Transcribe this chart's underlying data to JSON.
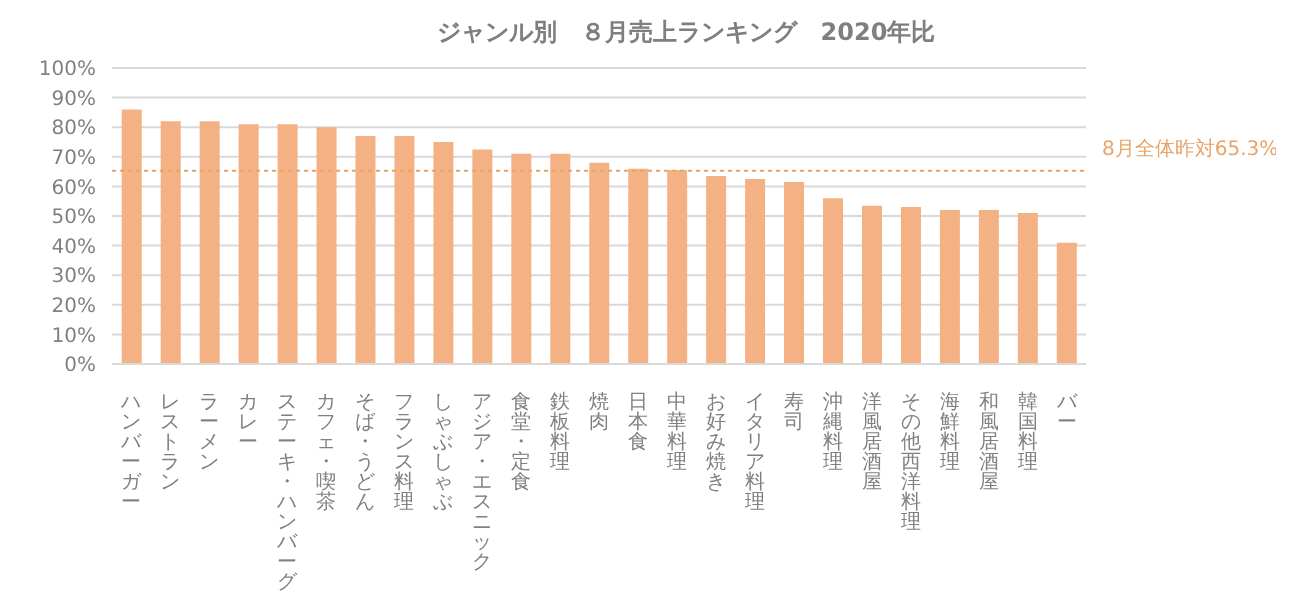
{
  "chart_data": {
    "type": "bar",
    "title": "ジャンル別　８月売上ランキング　2020年比",
    "categories": [
      "ハンバーガー",
      "レストラン",
      "ラーメン",
      "カレー",
      "ステーキ・ハンバーグ",
      "カフェ・喫茶",
      "そば・うどん",
      "フランス料理",
      "しゃぶしゃぶ",
      "アジア・エスニック",
      "食堂・定食",
      "鉄板料理",
      "焼肉",
      "日本食",
      "中華料理",
      "お好み焼き",
      "イタリア料理",
      "寿司",
      "沖縄料理",
      "洋風居酒屋",
      "その他西洋料理",
      "海鮮料理",
      "和風居酒屋",
      "韓国料理",
      "バー"
    ],
    "values": [
      86,
      82,
      82,
      81,
      81,
      80,
      77,
      77,
      75,
      72.5,
      71,
      71,
      68,
      66,
      65.5,
      63.5,
      62.5,
      61.5,
      56,
      53.5,
      53,
      52,
      52,
      51,
      41
    ],
    "color": "#f4b183",
    "ylim": [
      0,
      100
    ],
    "yticks": [
      {
        "value": 0,
        "label": "0%"
      },
      {
        "value": 10,
        "label": "10%"
      },
      {
        "value": 20,
        "label": "20%"
      },
      {
        "value": 30,
        "label": "30%"
      },
      {
        "value": 40,
        "label": "40%"
      },
      {
        "value": 50,
        "label": "50%"
      },
      {
        "value": 60,
        "label": "60%"
      },
      {
        "value": 70,
        "label": "70%"
      },
      {
        "value": 80,
        "label": "80%"
      },
      {
        "value": 90,
        "label": "90%"
      },
      {
        "value": 100,
        "label": "100%"
      }
    ],
    "grid": "y",
    "ref_lines": [
      {
        "axis": "y",
        "value": 65.3,
        "label": "8月全体昨対65.3%",
        "color": "#e6a46a",
        "line_style": "dotted"
      }
    ]
  }
}
